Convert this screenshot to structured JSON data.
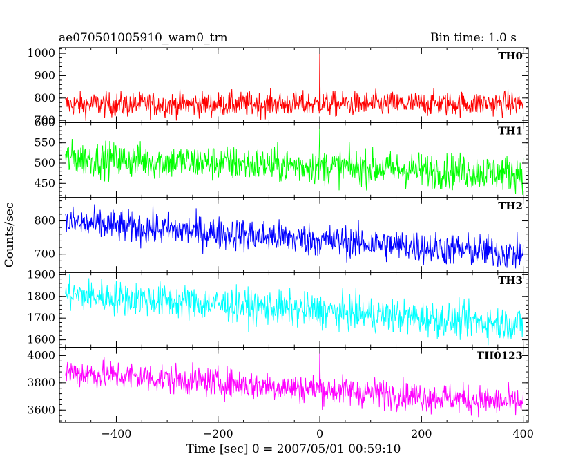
{
  "chart_data": {
    "type": "line",
    "title_left": "ae070501005910_wam0_trn",
    "title_right": "Bin time: 1.0 s",
    "xlabel": "Time [sec] 0 = 2007/05/01 00:59:10",
    "ylabel": "Counts/sec",
    "xlim": [
      -512,
      410
    ],
    "xticks": [
      -400,
      -200,
      0,
      200,
      400
    ],
    "x": {
      "start": -500,
      "end": 400,
      "step": 1
    },
    "grid": false,
    "panels": [
      {
        "name": "TH0",
        "color": "#ff0000",
        "ylim": [
          690,
          1025
        ],
        "yticks": [
          700,
          800,
          900,
          1000
        ],
        "baseline_start": 770,
        "baseline_end": 775,
        "noise": 28,
        "spike": {
          "x": 0,
          "y": 1030
        }
      },
      {
        "name": "TH1",
        "color": "#00ff00",
        "ylim": [
          415,
          600
        ],
        "yticks": [
          450,
          500,
          550,
          600
        ],
        "baseline_start": 512,
        "baseline_end": 475,
        "noise": 22,
        "spike": {
          "x": 0,
          "y": 600
        }
      },
      {
        "name": "TH2",
        "color": "#0000ff",
        "ylim": [
          645,
          870
        ],
        "yticks": [
          700,
          800
        ],
        "baseline_start": 795,
        "baseline_end": 700,
        "noise": 25,
        "spike": null
      },
      {
        "name": "TH3",
        "color": "#00ffff",
        "ylim": [
          1565,
          1910
        ],
        "yticks": [
          1600,
          1700,
          1800,
          1900
        ],
        "baseline_start": 1810,
        "baseline_end": 1670,
        "noise": 40,
        "spike": null
      },
      {
        "name": "TH0123",
        "color": "#ff00ff",
        "ylim": [
          3510,
          4060
        ],
        "yticks": [
          3600,
          3800,
          4000
        ],
        "baseline_start": 3880,
        "baseline_end": 3650,
        "noise": 55,
        "spike": {
          "x": 0,
          "y": 4060
        }
      }
    ]
  }
}
